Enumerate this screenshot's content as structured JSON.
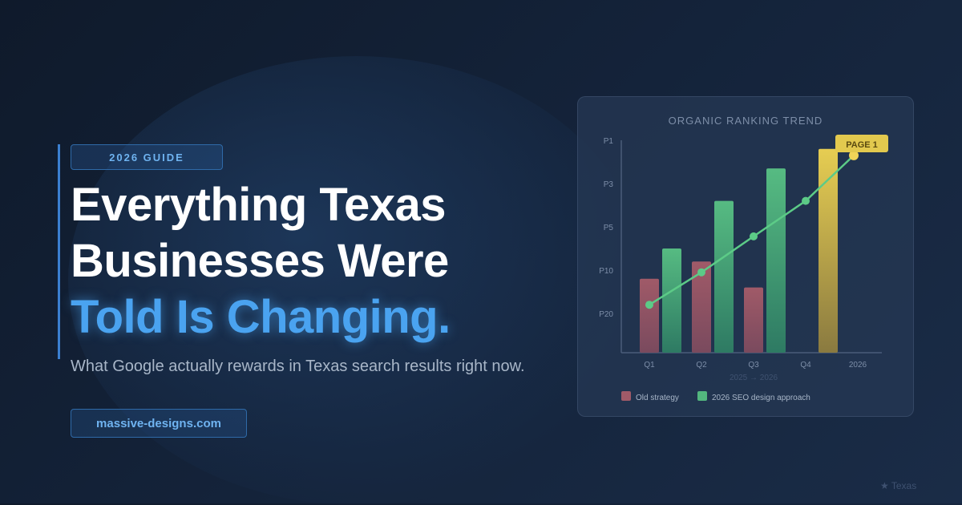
{
  "badge": "2026 GUIDE",
  "headline": {
    "line1": "Everything Texas",
    "line2": "Businesses Were",
    "line3": "Told Is Changing."
  },
  "subtitle": "What Google actually rewards in Texas search results right now.",
  "website": "massive-designs.com",
  "footer": {
    "icon": "star-icon",
    "label": "★ Texas"
  },
  "colors": {
    "old": "#a05a68",
    "new": "#52b67e",
    "highlight": "#e2c94e",
    "accent": "#4aa3f0"
  },
  "chart_data": {
    "type": "bar",
    "title": "ORGANIC RANKING TREND",
    "xlabel": "2025 → 2026",
    "categories": [
      "Q1",
      "Q2",
      "Q3",
      "Q4",
      "2026"
    ],
    "y_ticks": [
      "P1",
      "P3",
      "P5",
      "P10",
      "P20"
    ],
    "y_tick_values": [
      1,
      3,
      5,
      10,
      20
    ],
    "y_inverted": true,
    "series": [
      {
        "name": "Old strategy",
        "type": "bar",
        "values": [
          12,
          9,
          14,
          null,
          null
        ]
      },
      {
        "name": "2026 SEO design approach",
        "type": "bar",
        "values": [
          7.5,
          3.8,
          2.3,
          1.4,
          null
        ],
        "highlight_index": 3
      },
      {
        "type": "line",
        "values": [
          18,
          10.5,
          6.1,
          3.8,
          1.7
        ]
      }
    ],
    "annotation": "PAGE 1",
    "legend": "bottom-left",
    "grid": false
  }
}
